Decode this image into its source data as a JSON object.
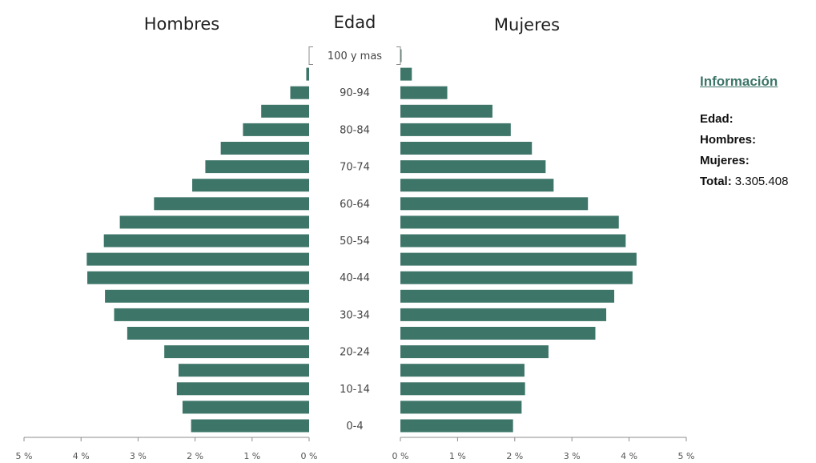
{
  "chart_data": {
    "type": "bar",
    "orientation": "horizontal-pyramid",
    "center_header": "Edad",
    "left_header": "Hombres",
    "right_header": "Mujeres",
    "categories": [
      "0-4",
      "5-9",
      "10-14",
      "15-19",
      "20-24",
      "25-29",
      "30-34",
      "35-39",
      "40-44",
      "45-49",
      "50-54",
      "55-59",
      "60-64",
      "65-69",
      "70-74",
      "75-79",
      "80-84",
      "85-89",
      "90-94",
      "95-99",
      "100 y mas"
    ],
    "category_labels_shown": [
      "0-4",
      "",
      "10-14",
      "",
      "20-24",
      "",
      "30-34",
      "",
      "40-44",
      "",
      "50-54",
      "",
      "60-64",
      "",
      "70-74",
      "",
      "80-84",
      "",
      "90-94",
      "",
      "100 y mas"
    ],
    "series": [
      {
        "name": "Hombres",
        "side": "left",
        "values": [
          2.07,
          2.22,
          2.32,
          2.29,
          2.54,
          3.19,
          3.42,
          3.58,
          3.89,
          3.9,
          3.6,
          3.32,
          2.72,
          2.05,
          1.82,
          1.55,
          1.16,
          0.84,
          0.33,
          0.05,
          0.0
        ]
      },
      {
        "name": "Mujeres",
        "side": "right",
        "values": [
          1.97,
          2.12,
          2.18,
          2.17,
          2.59,
          3.41,
          3.6,
          3.74,
          4.06,
          4.13,
          3.94,
          3.82,
          3.28,
          2.68,
          2.54,
          2.3,
          1.93,
          1.61,
          0.82,
          0.2,
          0.02
        ]
      }
    ],
    "xlim": [
      0,
      5
    ],
    "x_ticks_left": [
      "5 %",
      "4 %",
      "3 %",
      "2 %",
      "1 %",
      "0 %"
    ],
    "x_ticks_right": [
      "0 %",
      "1 %",
      "2 %",
      "3 %",
      "4 %",
      "5 %"
    ],
    "bar_color": "#3d7568",
    "grid": false,
    "legend": "none"
  },
  "info_panel": {
    "title": "Información",
    "rows": [
      {
        "key": "Edad:",
        "value": ""
      },
      {
        "key": "Hombres:",
        "value": ""
      },
      {
        "key": "Mujeres:",
        "value": ""
      },
      {
        "key": "Total:",
        "value": "3.305.408"
      }
    ]
  }
}
